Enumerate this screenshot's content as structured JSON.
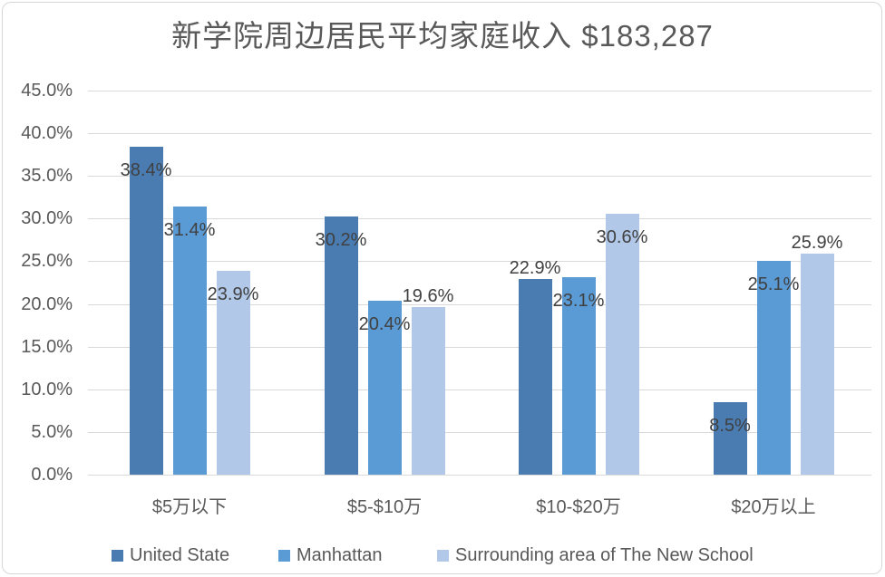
{
  "chart_data": {
    "type": "bar",
    "title": "新学院周边居民平均家庭收入 $183,287",
    "categories": [
      "$5万以下",
      "$5-$10万",
      "$10-$20万",
      "$20万以上"
    ],
    "series": [
      {
        "name": "United State",
        "color": "#4A7CB2",
        "values": [
          38.4,
          30.2,
          22.9,
          8.5
        ],
        "label_placement": [
          "inside",
          "inside",
          "outside",
          "inside"
        ]
      },
      {
        "name": "Manhattan",
        "color": "#5B9BD5",
        "values": [
          31.4,
          20.4,
          23.1,
          25.1
        ],
        "label_placement": [
          "inside",
          "inside",
          "inside",
          "inside"
        ]
      },
      {
        "name": "Surrounding area of The New School",
        "color": "#B1C8E8",
        "values": [
          23.9,
          19.6,
          30.6,
          25.9
        ],
        "label_placement": [
          "inside",
          "outside",
          "inside",
          "outside"
        ]
      }
    ],
    "data_label_suffix": "%",
    "y_axis": {
      "tick_labels": [
        "45.0%",
        "40.0%",
        "35.0%",
        "30.0%",
        "25.0%",
        "20.0%",
        "15.0%",
        "10.0%",
        "5.0%",
        "0.0%"
      ],
      "tick_values": [
        45,
        40,
        35,
        30,
        25,
        20,
        15,
        10,
        5,
        0
      ],
      "min": 0,
      "max": 45
    },
    "grid": true,
    "legend_position": "bottom",
    "colors": {
      "grid_line": "#d9d9d9",
      "axis_text": "#595959",
      "data_label_text": "#404040",
      "title_text": "#595959",
      "background": "#ffffff",
      "frame_border": "#d7d7d7"
    }
  }
}
